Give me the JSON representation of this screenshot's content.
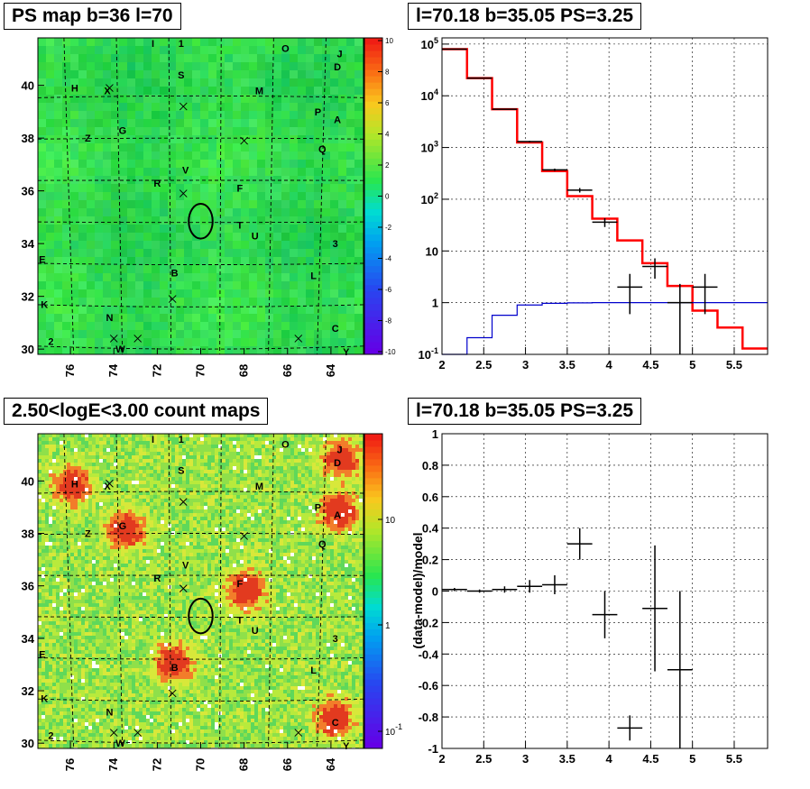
{
  "panels": {
    "ps_map": {
      "title": "PS map b=36 l=70",
      "x_ticks": [
        "76",
        "74",
        "72",
        "70",
        "68",
        "66",
        "64"
      ],
      "y_ticks": [
        "30",
        "32",
        "34",
        "36",
        "38",
        "40"
      ],
      "colorbar_ticks": [
        "10",
        "8",
        "6",
        "4",
        "2",
        "0",
        "-2",
        "-4",
        "-6",
        "-8",
        "-10"
      ]
    },
    "spectrum": {
      "title": "l=70.18 b=35.05 PS=3.25",
      "x_ticks": [
        "2",
        "2.5",
        "3",
        "3.5",
        "4",
        "4.5",
        "5",
        "5.5"
      ],
      "y_ticks": [
        "10^-1",
        "1",
        "10",
        "10^2",
        "10^3",
        "10^4",
        "10^5"
      ]
    },
    "count_map": {
      "title": "2.50<logE<3.00 count maps",
      "x_ticks": [
        "76",
        "74",
        "72",
        "70",
        "68",
        "66",
        "64"
      ],
      "y_ticks": [
        "30",
        "32",
        "34",
        "36",
        "38",
        "40"
      ],
      "colorbar_ticks": [
        "10",
        "1",
        "10^-1"
      ]
    },
    "residual": {
      "title": "l=70.18 b=35.05 PS=3.25",
      "ylabel": "(data-model)/model",
      "x_ticks": [
        "2",
        "2.5",
        "3",
        "3.5",
        "4",
        "4.5",
        "5",
        "5.5"
      ],
      "y_ticks": [
        "-1",
        "-0.8",
        "-0.6",
        "-0.4",
        "-0.2",
        "0",
        "0.2",
        "0.4",
        "0.6",
        "0.8",
        "1"
      ]
    }
  },
  "map_sources": [
    {
      "label": "I",
      "l": 72.2,
      "b": 41.6
    },
    {
      "label": "1",
      "l": 70.9,
      "b": 41.6
    },
    {
      "label": "O",
      "l": 66.1,
      "b": 41.4
    },
    {
      "label": "J",
      "l": 63.6,
      "b": 41.2
    },
    {
      "label": "D",
      "l": 63.7,
      "b": 40.7
    },
    {
      "label": "S",
      "l": 70.9,
      "b": 40.4
    },
    {
      "label": "H",
      "l": 75.8,
      "b": 39.9
    },
    {
      "label": "X",
      "l": 74.3,
      "b": 39.8
    },
    {
      "label": "M",
      "l": 67.3,
      "b": 39.8
    },
    {
      "label": "P",
      "l": 64.6,
      "b": 39.0
    },
    {
      "label": "A",
      "l": 63.7,
      "b": 38.7
    },
    {
      "label": "G",
      "l": 73.6,
      "b": 38.3
    },
    {
      "label": "Z",
      "l": 75.2,
      "b": 38.0
    },
    {
      "label": "Q",
      "l": 64.4,
      "b": 37.6
    },
    {
      "label": "V",
      "l": 70.7,
      "b": 36.8
    },
    {
      "label": "R",
      "l": 72.0,
      "b": 36.3
    },
    {
      "label": "F",
      "l": 68.2,
      "b": 36.1
    },
    {
      "label": "T",
      "l": 68.2,
      "b": 34.7
    },
    {
      "label": "U",
      "l": 67.5,
      "b": 34.3
    },
    {
      "label": "3",
      "l": 63.8,
      "b": 34.0
    },
    {
      "label": "E",
      "l": 77.3,
      "b": 33.4
    },
    {
      "label": "B",
      "l": 71.2,
      "b": 32.9
    },
    {
      "label": "L",
      "l": 64.8,
      "b": 32.8
    },
    {
      "label": "K",
      "l": 77.2,
      "b": 31.7
    },
    {
      "label": "N",
      "l": 74.2,
      "b": 31.2
    },
    {
      "label": "C",
      "l": 63.8,
      "b": 30.8
    },
    {
      "label": "2",
      "l": 76.9,
      "b": 30.3
    },
    {
      "label": "W",
      "l": 73.7,
      "b": 30.0
    },
    {
      "label": "Y",
      "l": 63.3,
      "b": 29.9
    }
  ],
  "map_crosses": [
    {
      "l": 74.2,
      "b": 39.9
    },
    {
      "l": 70.8,
      "b": 39.2
    },
    {
      "l": 68.0,
      "b": 37.9
    },
    {
      "l": 70.8,
      "b": 35.9
    },
    {
      "l": 71.3,
      "b": 31.9
    },
    {
      "l": 74.0,
      "b": 30.4
    },
    {
      "l": 72.9,
      "b": 30.4
    },
    {
      "l": 65.5,
      "b": 30.4
    }
  ],
  "map_circle": {
    "l": 70.0,
    "b": 34.85,
    "r": 0.55
  },
  "count_map_hotspots": [
    {
      "label": "J",
      "l": 63.6,
      "b": 40.9
    },
    {
      "label": "A",
      "l": 63.7,
      "b": 38.9
    },
    {
      "label": "G",
      "l": 73.5,
      "b": 38.2
    },
    {
      "label": "F",
      "l": 68.0,
      "b": 35.9
    },
    {
      "label": "B",
      "l": 71.3,
      "b": 33.1
    },
    {
      "label": "C",
      "l": 63.9,
      "b": 31.0
    },
    {
      "label": "H",
      "l": 76.0,
      "b": 39.9
    }
  ],
  "chart_data": [
    {
      "type": "heatmap",
      "title": "PS map b=36 l=70",
      "xlabel": "",
      "ylabel": "",
      "xlim": [
        77.5,
        62.5
      ],
      "ylim": [
        29.8,
        41.8
      ],
      "zlim": [
        -10,
        10
      ],
      "note_values": "PS significance map, mostly near 0 (green) everywhere"
    },
    {
      "type": "line",
      "title": "l=70.18 b=35.05 PS=3.25",
      "xlim": [
        2,
        5.9
      ],
      "ylim": [
        0.1,
        100000
      ],
      "y_scale": "log",
      "series": [
        {
          "color": "#ff0000",
          "type": "step",
          "edges": [
            2,
            2.3,
            2.6,
            2.9,
            3.2,
            3.5,
            3.8,
            4.1,
            4.4,
            4.7,
            5.0,
            5.3,
            5.6,
            5.9
          ],
          "values": [
            80000,
            22000,
            5500,
            1250,
            350,
            115,
            42,
            16,
            5.8,
            2.1,
            0.7,
            0.33,
            0.13
          ]
        },
        {
          "color": "#0000cc",
          "type": "step",
          "edges": [
            2,
            2.3,
            2.6,
            2.9,
            3.2,
            3.5,
            3.8,
            4.1,
            4.4,
            4.7,
            5.0,
            5.3,
            5.6,
            5.9
          ],
          "values": [
            0.1,
            0.21,
            0.57,
            0.9,
            0.97,
            0.99,
            1.0,
            1.0,
            1.0,
            1.0,
            1.0,
            1.0,
            1.0
          ]
        },
        {
          "color": "#000000",
          "type": "points",
          "points": [
            {
              "x": 2.15,
              "y": 80000,
              "xerr": 0.15,
              "ylo": 79000,
              "yhi": 81000
            },
            {
              "x": 2.45,
              "y": 22000,
              "xerr": 0.15,
              "ylo": 21700,
              "yhi": 22300
            },
            {
              "x": 2.75,
              "y": 5500,
              "xerr": 0.15,
              "ylo": 5400,
              "yhi": 5600
            },
            {
              "x": 3.05,
              "y": 1300,
              "xerr": 0.15,
              "ylo": 1250,
              "yhi": 1350
            },
            {
              "x": 3.35,
              "y": 370,
              "xerr": 0.15,
              "ylo": 350,
              "yhi": 390
            },
            {
              "x": 3.65,
              "y": 150,
              "xerr": 0.15,
              "ylo": 135,
              "yhi": 165
            },
            {
              "x": 3.95,
              "y": 36,
              "xerr": 0.15,
              "ylo": 29,
              "yhi": 43
            },
            {
              "x": 4.25,
              "y": 2,
              "xerr": 0.15,
              "ylo": 0.6,
              "yhi": 3.6
            },
            {
              "x": 4.55,
              "y": 5,
              "xerr": 0.15,
              "ylo": 2.9,
              "yhi": 7.2
            },
            {
              "x": 4.85,
              "y": 1,
              "xerr": 0.15,
              "ylo": 0.1,
              "yhi": 2.3
            },
            {
              "x": 5.15,
              "y": 2,
              "xerr": 0.15,
              "ylo": 0.6,
              "yhi": 3.6
            }
          ]
        }
      ]
    },
    {
      "type": "heatmap",
      "title": "2.50<logE<3.00 count maps",
      "xlim": [
        77.5,
        62.5
      ],
      "ylim": [
        29.8,
        41.8
      ],
      "z_scale": "log",
      "zlim": [
        0.05,
        30
      ]
    },
    {
      "type": "scatter",
      "title": "l=70.18 b=35.05 PS=3.25",
      "ylabel": "(data-model)/model",
      "xlim": [
        2,
        5.9
      ],
      "ylim": [
        -1,
        1
      ],
      "points": [
        {
          "x": 2.15,
          "y": 0.01,
          "xerr": 0.15,
          "yerr": 0.01
        },
        {
          "x": 2.45,
          "y": 0.0,
          "xerr": 0.15,
          "yerr": 0.01
        },
        {
          "x": 2.75,
          "y": 0.01,
          "xerr": 0.15,
          "yerr": 0.02
        },
        {
          "x": 3.05,
          "y": 0.03,
          "xerr": 0.15,
          "yerr": 0.04
        },
        {
          "x": 3.35,
          "y": 0.04,
          "xerr": 0.15,
          "yerr": 0.06
        },
        {
          "x": 3.65,
          "y": 0.3,
          "xerr": 0.15,
          "yerr": 0.1
        },
        {
          "x": 3.95,
          "y": -0.15,
          "xerr": 0.15,
          "yerr": 0.15
        },
        {
          "x": 4.25,
          "y": -0.87,
          "xerr": 0.15,
          "yerr": 0.08
        },
        {
          "x": 4.55,
          "y": -0.11,
          "xerr": 0.15,
          "yerr": 0.4
        },
        {
          "x": 4.85,
          "y": -0.5,
          "xerr": 0.15,
          "yerr": 0.5
        }
      ]
    }
  ]
}
